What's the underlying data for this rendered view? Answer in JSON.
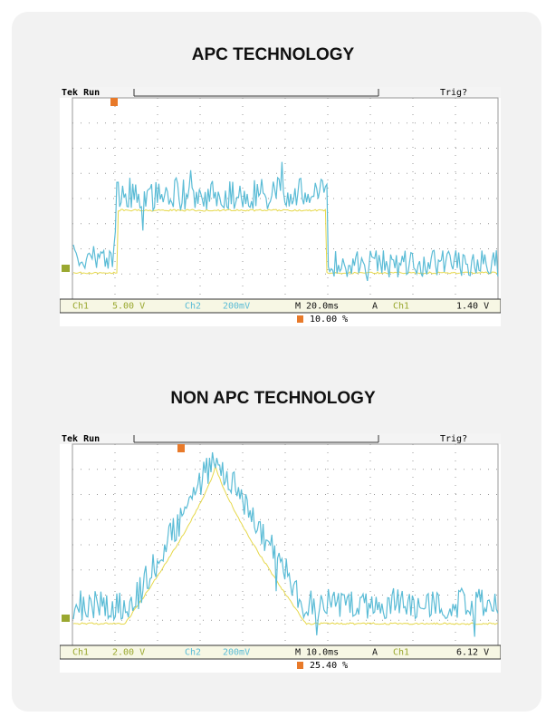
{
  "panels": [
    {
      "title": "APC TECHNOLOGY",
      "scope": {
        "status": "Tek Run",
        "trigger_state": "Trig?",
        "ch1_label": "Ch1",
        "ch1_scale": "5.00 V",
        "ch2_label": "Ch2",
        "ch2_scale": "200mV",
        "timebase": "M 20.0ms",
        "trigger_mode": "A",
        "trigger_source": "Ch1",
        "trigger_level": "1.40 V",
        "trigger_position": "10.00 %"
      }
    },
    {
      "title": "NON APC TECHNOLOGY",
      "scope": {
        "status": "Tek Run",
        "trigger_state": "Trig?",
        "ch1_label": "Ch1",
        "ch1_scale": "2.00 V",
        "ch2_label": "Ch2",
        "ch2_scale": "200mV",
        "timebase": "M 10.0ms",
        "trigger_mode": "A",
        "trigger_source": "Ch1",
        "trigger_level": "6.12 V",
        "trigger_position": "25.40 %"
      }
    }
  ]
}
